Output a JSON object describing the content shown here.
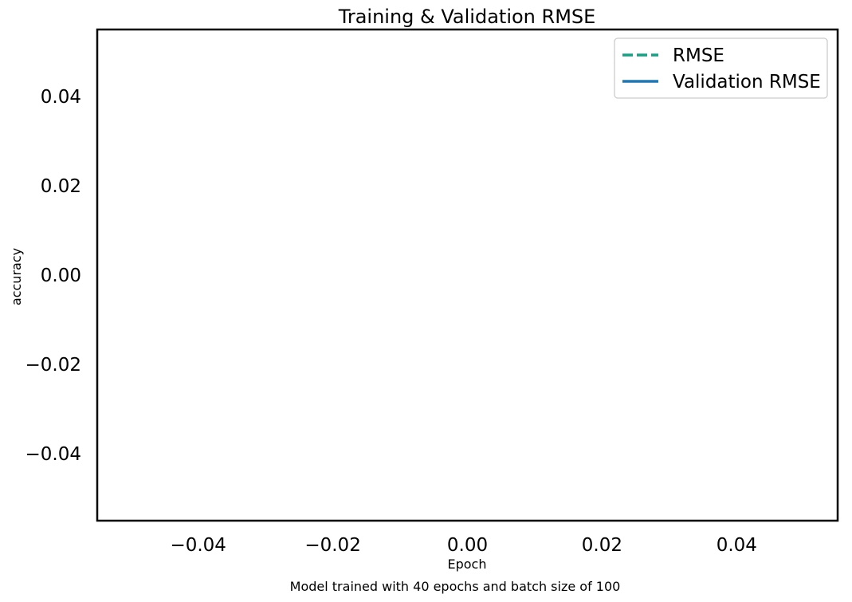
{
  "chart_data": {
    "type": "line",
    "title": "Training & Validation RMSE",
    "xlabel": "Epoch",
    "ylabel": "accuracy",
    "caption": "Model trained with 40 epochs and batch size of 100",
    "xlim": [
      -0.055,
      0.055
    ],
    "ylim": [
      -0.055,
      0.055
    ],
    "xticks": [
      -0.04,
      -0.02,
      0.0,
      0.02,
      0.04
    ],
    "yticks": [
      -0.04,
      -0.02,
      0.0,
      0.02,
      0.04
    ],
    "xtick_labels": [
      "−0.04",
      "−0.02",
      "0.00",
      "0.02",
      "0.04"
    ],
    "ytick_labels": [
      "−0.04",
      "−0.02",
      "0.00",
      "0.02",
      "0.04"
    ],
    "grid": false,
    "legend_position": "top-right",
    "series": [
      {
        "name": "RMSE",
        "color": "#13a384",
        "line_style": "dashed",
        "x": [],
        "y": []
      },
      {
        "name": "Validation RMSE",
        "color": "#1f77b4",
        "line_style": "solid",
        "x": [],
        "y": []
      }
    ]
  }
}
